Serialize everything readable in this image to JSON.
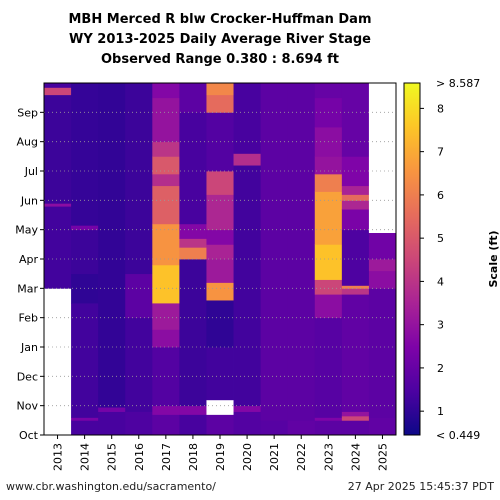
{
  "chart_data": {
    "type": "heatmap",
    "title_lines": [
      "MBH Merced R blw Crocker-Huffman Dam",
      "WY 2013-2025 Daily Average River Stage",
      "Observed Range 0.380 : 8.694 ft"
    ],
    "water_years": [
      "2013",
      "2014",
      "2015",
      "2016",
      "2017",
      "2018",
      "2019",
      "2020",
      "2021",
      "2022",
      "2023",
      "2024",
      "2025"
    ],
    "month_ticks": [
      "Oct",
      "Nov",
      "Dec",
      "Jan",
      "Feb",
      "Mar",
      "Apr",
      "May",
      "Jun",
      "Jul",
      "Aug",
      "Sep"
    ],
    "colorbar": {
      "label": "Scale (ft)",
      "min": 0.449,
      "max": 8.587,
      "ticks": [
        1,
        2,
        3,
        4,
        5,
        6,
        7,
        8
      ],
      "min_label": "< 0.449",
      "max_label": "> 8.587",
      "colors": [
        "#0d0887",
        "#4c02a1",
        "#7e03a8",
        "#a92395",
        "#cc4778",
        "#e66c5c",
        "#f89540",
        "#fdc527",
        "#f0f921"
      ]
    },
    "grid": "dotted horizontal at month starts",
    "missing_color": "#ffffff",
    "stage_ft_by_year": [
      {
        "year": "2013",
        "segments": [
          {
            "from": 0.0,
            "to": 5.0,
            "v": null
          },
          {
            "from": 5.0,
            "to": 7.8,
            "v": 1.3
          },
          {
            "from": 7.8,
            "to": 7.9,
            "v": 2.8
          },
          {
            "from": 7.9,
            "to": 11.6,
            "v": 1.2
          },
          {
            "from": 11.6,
            "to": 11.85,
            "v": 4.5
          },
          {
            "from": 11.85,
            "to": 12.0,
            "v": 1.4
          }
        ]
      },
      {
        "year": "2014",
        "segments": [
          {
            "from": 0.0,
            "to": 0.5,
            "v": 1.4
          },
          {
            "from": 0.5,
            "to": 0.6,
            "v": 2.4
          },
          {
            "from": 0.6,
            "to": 4.5,
            "v": 1.3
          },
          {
            "from": 4.5,
            "to": 5.5,
            "v": 1.0
          },
          {
            "from": 5.5,
            "to": 7.0,
            "v": 1.2
          },
          {
            "from": 7.0,
            "to": 7.15,
            "v": 2.3
          },
          {
            "from": 7.15,
            "to": 12.0,
            "v": 1.1
          }
        ]
      },
      {
        "year": "2015",
        "segments": [
          {
            "from": 0.0,
            "to": 0.8,
            "v": 1.4
          },
          {
            "from": 0.8,
            "to": 0.95,
            "v": 2.3
          },
          {
            "from": 0.95,
            "to": 12.0,
            "v": 1.05
          }
        ]
      },
      {
        "year": "2016",
        "segments": [
          {
            "from": 0.0,
            "to": 0.8,
            "v": 1.5
          },
          {
            "from": 0.8,
            "to": 4.0,
            "v": 1.3
          },
          {
            "from": 4.0,
            "to": 5.5,
            "v": 1.8
          },
          {
            "from": 5.5,
            "to": 12.0,
            "v": 1.2
          }
        ]
      },
      {
        "year": "2017",
        "segments": [
          {
            "from": 0.0,
            "to": 0.7,
            "v": 1.8
          },
          {
            "from": 0.7,
            "to": 1.0,
            "v": 2.6
          },
          {
            "from": 1.0,
            "to": 3.0,
            "v": 1.6
          },
          {
            "from": 3.0,
            "to": 3.6,
            "v": 2.8
          },
          {
            "from": 3.6,
            "to": 4.5,
            "v": 3.2
          },
          {
            "from": 4.5,
            "to": 5.8,
            "v": 7.5
          },
          {
            "from": 5.8,
            "to": 7.2,
            "v": 6.5
          },
          {
            "from": 7.2,
            "to": 8.5,
            "v": 5.2
          },
          {
            "from": 8.5,
            "to": 8.9,
            "v": 3.8
          },
          {
            "from": 8.9,
            "to": 9.5,
            "v": 5.0
          },
          {
            "from": 9.5,
            "to": 10.0,
            "v": 4.0
          },
          {
            "from": 10.0,
            "to": 11.5,
            "v": 3.0
          },
          {
            "from": 11.5,
            "to": 12.0,
            "v": 2.6
          }
        ]
      },
      {
        "year": "2018",
        "segments": [
          {
            "from": 0.0,
            "to": 0.7,
            "v": 1.4
          },
          {
            "from": 0.7,
            "to": 1.0,
            "v": 2.6
          },
          {
            "from": 1.0,
            "to": 6.0,
            "v": 1.2
          },
          {
            "from": 6.0,
            "to": 6.4,
            "v": 6.0
          },
          {
            "from": 6.4,
            "to": 6.7,
            "v": 4.0
          },
          {
            "from": 6.7,
            "to": 7.2,
            "v": 2.6
          },
          {
            "from": 7.2,
            "to": 11.0,
            "v": 1.4
          },
          {
            "from": 11.0,
            "to": 12.0,
            "v": 1.8
          }
        ]
      },
      {
        "year": "2019",
        "segments": [
          {
            "from": 0.0,
            "to": 0.7,
            "v": 1.8
          },
          {
            "from": 0.7,
            "to": 1.2,
            "v": null
          },
          {
            "from": 1.2,
            "to": 3.0,
            "v": 1.3
          },
          {
            "from": 3.0,
            "to": 4.6,
            "v": 1.0
          },
          {
            "from": 4.6,
            "to": 5.2,
            "v": 6.5
          },
          {
            "from": 5.2,
            "to": 6.0,
            "v": 3.2
          },
          {
            "from": 6.0,
            "to": 6.5,
            "v": 3.5
          },
          {
            "from": 6.5,
            "to": 7.0,
            "v": 2.6
          },
          {
            "from": 7.0,
            "to": 8.2,
            "v": 3.6
          },
          {
            "from": 8.2,
            "to": 9.0,
            "v": 4.5
          },
          {
            "from": 9.0,
            "to": 11.0,
            "v": 1.6
          },
          {
            "from": 11.0,
            "to": 11.6,
            "v": 5.5
          },
          {
            "from": 11.6,
            "to": 12.0,
            "v": 6.2
          }
        ]
      },
      {
        "year": "2020",
        "segments": [
          {
            "from": 0.0,
            "to": 0.8,
            "v": 1.6
          },
          {
            "from": 0.8,
            "to": 1.0,
            "v": 2.6
          },
          {
            "from": 1.0,
            "to": 9.2,
            "v": 1.3
          },
          {
            "from": 9.2,
            "to": 9.6,
            "v": 3.8
          },
          {
            "from": 9.6,
            "to": 12.0,
            "v": 1.4
          }
        ]
      },
      {
        "year": "2021",
        "segments": [
          {
            "from": 0.0,
            "to": 0.5,
            "v": 1.7
          },
          {
            "from": 0.5,
            "to": 12.0,
            "v": 1.8
          }
        ]
      },
      {
        "year": "2022",
        "segments": [
          {
            "from": 0.0,
            "to": 0.5,
            "v": 1.9
          },
          {
            "from": 0.5,
            "to": 12.0,
            "v": 1.8
          }
        ]
      },
      {
        "year": "2023",
        "segments": [
          {
            "from": 0.0,
            "to": 0.5,
            "v": 1.8
          },
          {
            "from": 0.5,
            "to": 0.6,
            "v": 2.5
          },
          {
            "from": 0.6,
            "to": 4.0,
            "v": 1.7
          },
          {
            "from": 4.0,
            "to": 4.8,
            "v": 2.8
          },
          {
            "from": 4.8,
            "to": 5.3,
            "v": 4.5
          },
          {
            "from": 5.3,
            "to": 6.5,
            "v": 7.5
          },
          {
            "from": 6.5,
            "to": 8.3,
            "v": 6.8
          },
          {
            "from": 8.3,
            "to": 8.9,
            "v": 6.0
          },
          {
            "from": 8.9,
            "to": 9.5,
            "v": 3.0
          },
          {
            "from": 9.5,
            "to": 10.5,
            "v": 2.8
          },
          {
            "from": 10.5,
            "to": 11.5,
            "v": 2.3
          },
          {
            "from": 11.5,
            "to": 12.0,
            "v": 2.0
          }
        ]
      },
      {
        "year": "2024",
        "segments": [
          {
            "from": 0.0,
            "to": 0.5,
            "v": 1.8
          },
          {
            "from": 0.5,
            "to": 0.65,
            "v": 4.5
          },
          {
            "from": 0.65,
            "to": 0.8,
            "v": 3.0
          },
          {
            "from": 0.8,
            "to": 4.8,
            "v": 1.9
          },
          {
            "from": 4.8,
            "to": 5.0,
            "v": 4.0
          },
          {
            "from": 5.0,
            "to": 5.1,
            "v": 6.0
          },
          {
            "from": 5.1,
            "to": 7.0,
            "v": 1.5
          },
          {
            "from": 7.0,
            "to": 7.7,
            "v": 2.4
          },
          {
            "from": 7.7,
            "to": 8.0,
            "v": 3.6
          },
          {
            "from": 8.0,
            "to": 8.2,
            "v": 5.5
          },
          {
            "from": 8.2,
            "to": 8.5,
            "v": 3.5
          },
          {
            "from": 8.5,
            "to": 9.5,
            "v": 2.5
          },
          {
            "from": 9.5,
            "to": 12.0,
            "v": 2.0
          }
        ]
      },
      {
        "year": "2025",
        "segments": [
          {
            "from": 0.0,
            "to": 0.6,
            "v": 1.9
          },
          {
            "from": 0.6,
            "to": 5.0,
            "v": 1.8
          },
          {
            "from": 5.0,
            "to": 5.6,
            "v": 2.8
          },
          {
            "from": 5.6,
            "to": 6.0,
            "v": 3.2
          },
          {
            "from": 6.0,
            "to": 6.9,
            "v": 2.2
          },
          {
            "from": 6.9,
            "to": 12.0,
            "v": null
          }
        ]
      }
    ]
  },
  "footer": {
    "source_url": "www.cbr.washington.edu/sacramento/",
    "timestamp": "27 Apr 2025 15:45:37 PDT"
  }
}
